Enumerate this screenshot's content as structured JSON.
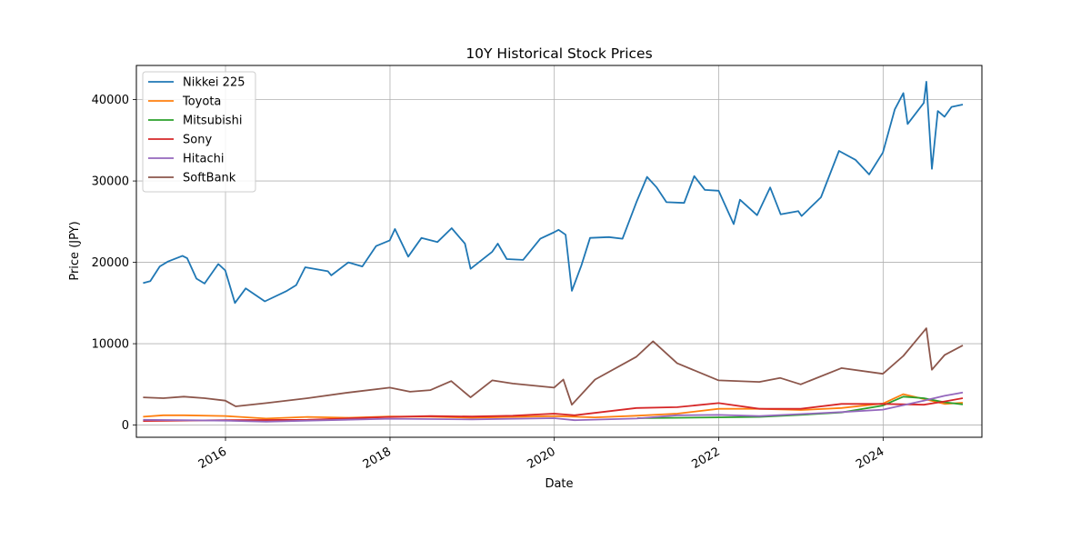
{
  "chart_data": {
    "type": "line",
    "title": "10Y Historical Stock Prices",
    "xlabel": "Date",
    "ylabel": "Price (JPY)",
    "xlim": [
      "2014-12-01",
      "2025-03-15"
    ],
    "ylim": [
      -1500,
      44200
    ],
    "x_ticks": [
      "2016",
      "2018",
      "2020",
      "2022",
      "2024"
    ],
    "y_ticks": [
      0,
      10000,
      20000,
      30000,
      40000
    ],
    "grid": true,
    "legend_position": "top-left",
    "colors": {
      "Nikkei 225": "#1f77b4",
      "Toyota": "#ff7f0e",
      "Mitsubishi": "#2ca02c",
      "Sony": "#d62728",
      "Hitachi": "#9467bd",
      "SoftBank": "#8c564b"
    },
    "series": [
      {
        "name": "Nikkei 225",
        "points": [
          [
            "2014-12-31",
            17450
          ],
          [
            "2015-02-01",
            17700
          ],
          [
            "2015-03-15",
            19500
          ],
          [
            "2015-04-20",
            20100
          ],
          [
            "2015-06-24",
            20800
          ],
          [
            "2015-07-15",
            20500
          ],
          [
            "2015-08-25",
            18000
          ],
          [
            "2015-09-30",
            17400
          ],
          [
            "2015-11-30",
            19800
          ],
          [
            "2015-12-31",
            19000
          ],
          [
            "2016-02-12",
            15000
          ],
          [
            "2016-03-31",
            16800
          ],
          [
            "2016-06-24",
            15200
          ],
          [
            "2016-09-30",
            16500
          ],
          [
            "2016-11-10",
            17200
          ],
          [
            "2016-12-20",
            19400
          ],
          [
            "2017-03-31",
            18900
          ],
          [
            "2017-04-15",
            18400
          ],
          [
            "2017-06-30",
            20000
          ],
          [
            "2017-08-31",
            19500
          ],
          [
            "2017-10-31",
            22000
          ],
          [
            "2017-12-31",
            22700
          ],
          [
            "2018-01-23",
            24100
          ],
          [
            "2018-03-23",
            20700
          ],
          [
            "2018-05-21",
            23000
          ],
          [
            "2018-07-31",
            22500
          ],
          [
            "2018-10-02",
            24200
          ],
          [
            "2018-11-30",
            22300
          ],
          [
            "2018-12-25",
            19200
          ],
          [
            "2019-03-31",
            21300
          ],
          [
            "2019-04-25",
            22300
          ],
          [
            "2019-06-04",
            20400
          ],
          [
            "2019-08-15",
            20300
          ],
          [
            "2019-10-31",
            22900
          ],
          [
            "2019-12-31",
            23700
          ],
          [
            "2020-01-20",
            24000
          ],
          [
            "2020-02-20",
            23400
          ],
          [
            "2020-03-19",
            16500
          ],
          [
            "2020-04-30",
            19600
          ],
          [
            "2020-06-08",
            23000
          ],
          [
            "2020-08-31",
            23100
          ],
          [
            "2020-10-30",
            22900
          ],
          [
            "2020-12-31",
            27400
          ],
          [
            "2021-02-16",
            30500
          ],
          [
            "2021-03-31",
            29200
          ],
          [
            "2021-05-13",
            27400
          ],
          [
            "2021-07-31",
            27300
          ],
          [
            "2021-09-14",
            30600
          ],
          [
            "2021-10-31",
            28900
          ],
          [
            "2021-12-31",
            28800
          ],
          [
            "2022-03-08",
            24700
          ],
          [
            "2022-04-05",
            27700
          ],
          [
            "2022-06-20",
            25800
          ],
          [
            "2022-08-17",
            29200
          ],
          [
            "2022-10-03",
            25900
          ],
          [
            "2022-12-20",
            26300
          ],
          [
            "2023-01-04",
            25700
          ],
          [
            "2023-03-31",
            28000
          ],
          [
            "2023-06-19",
            33700
          ],
          [
            "2023-08-31",
            32600
          ],
          [
            "2023-10-31",
            30800
          ],
          [
            "2023-12-31",
            33500
          ],
          [
            "2024-02-22",
            38800
          ],
          [
            "2024-03-31",
            40800
          ],
          [
            "2024-04-19",
            37000
          ],
          [
            "2024-06-30",
            39600
          ],
          [
            "2024-07-11",
            42200
          ],
          [
            "2024-08-05",
            31500
          ],
          [
            "2024-08-31",
            38600
          ],
          [
            "2024-09-30",
            37900
          ],
          [
            "2024-10-31",
            39100
          ],
          [
            "2024-12-20",
            39400
          ]
        ]
      },
      {
        "name": "Toyota",
        "points": [
          [
            "2014-12-31",
            1030
          ],
          [
            "2015-03-31",
            1200
          ],
          [
            "2015-06-30",
            1200
          ],
          [
            "2015-12-31",
            1120
          ],
          [
            "2016-06-30",
            800
          ],
          [
            "2016-12-31",
            1000
          ],
          [
            "2017-06-30",
            900
          ],
          [
            "2017-12-31",
            1050
          ],
          [
            "2018-06-30",
            1020
          ],
          [
            "2018-12-31",
            900
          ],
          [
            "2019-06-30",
            1000
          ],
          [
            "2019-12-31",
            1100
          ],
          [
            "2020-06-30",
            950
          ],
          [
            "2020-12-31",
            1150
          ],
          [
            "2021-06-30",
            1400
          ],
          [
            "2021-12-31",
            2000
          ],
          [
            "2022-06-30",
            2000
          ],
          [
            "2022-12-31",
            1850
          ],
          [
            "2023-06-30",
            2100
          ],
          [
            "2023-12-31",
            2650
          ],
          [
            "2024-03-31",
            3800
          ],
          [
            "2024-06-30",
            3200
          ],
          [
            "2024-09-30",
            2600
          ],
          [
            "2024-12-20",
            2750
          ]
        ]
      },
      {
        "name": "Mitsubishi",
        "points": [
          [
            "2021-01-04",
            850
          ],
          [
            "2021-12-31",
            950
          ],
          [
            "2022-06-30",
            1000
          ],
          [
            "2022-12-31",
            1250
          ],
          [
            "2023-06-30",
            1550
          ],
          [
            "2023-12-31",
            2400
          ],
          [
            "2024-03-31",
            3500
          ],
          [
            "2024-06-30",
            3300
          ],
          [
            "2024-09-30",
            2800
          ],
          [
            "2024-12-20",
            2550
          ]
        ]
      },
      {
        "name": "Sony",
        "points": [
          [
            "2014-12-31",
            500
          ],
          [
            "2015-12-31",
            600
          ],
          [
            "2016-12-31",
            650
          ],
          [
            "2017-12-31",
            1000
          ],
          [
            "2018-06-30",
            1100
          ],
          [
            "2018-12-31",
            1050
          ],
          [
            "2019-06-30",
            1150
          ],
          [
            "2019-12-31",
            1400
          ],
          [
            "2020-03-31",
            1200
          ],
          [
            "2020-12-31",
            2100
          ],
          [
            "2021-06-30",
            2200
          ],
          [
            "2021-12-31",
            2700
          ],
          [
            "2022-06-30",
            2000
          ],
          [
            "2022-12-31",
            2000
          ],
          [
            "2023-06-30",
            2600
          ],
          [
            "2023-12-31",
            2600
          ],
          [
            "2024-06-30",
            2500
          ],
          [
            "2024-09-30",
            2900
          ],
          [
            "2024-12-20",
            3300
          ]
        ]
      },
      {
        "name": "Hitachi",
        "points": [
          [
            "2014-12-31",
            650
          ],
          [
            "2015-12-31",
            550
          ],
          [
            "2016-06-30",
            420
          ],
          [
            "2016-12-31",
            550
          ],
          [
            "2017-12-31",
            780
          ],
          [
            "2018-12-31",
            700
          ],
          [
            "2019-12-31",
            850
          ],
          [
            "2020-03-31",
            600
          ],
          [
            "2020-12-31",
            800
          ],
          [
            "2021-06-30",
            1200
          ],
          [
            "2021-12-31",
            1250
          ],
          [
            "2022-06-30",
            1100
          ],
          [
            "2022-12-31",
            1350
          ],
          [
            "2023-06-30",
            1600
          ],
          [
            "2023-12-31",
            1900
          ],
          [
            "2024-06-30",
            3000
          ],
          [
            "2024-09-30",
            3600
          ],
          [
            "2024-12-20",
            4000
          ]
        ]
      },
      {
        "name": "SoftBank",
        "points": [
          [
            "2014-12-31",
            3400
          ],
          [
            "2015-03-31",
            3300
          ],
          [
            "2015-06-30",
            3500
          ],
          [
            "2015-09-30",
            3300
          ],
          [
            "2015-12-31",
            3000
          ],
          [
            "2016-02-15",
            2300
          ],
          [
            "2016-06-30",
            2700
          ],
          [
            "2016-12-31",
            3300
          ],
          [
            "2017-06-30",
            4000
          ],
          [
            "2017-12-31",
            4600
          ],
          [
            "2018-03-31",
            4100
          ],
          [
            "2018-06-30",
            4300
          ],
          [
            "2018-09-30",
            5400
          ],
          [
            "2018-12-25",
            3400
          ],
          [
            "2019-03-31",
            5500
          ],
          [
            "2019-06-30",
            5100
          ],
          [
            "2019-12-31",
            4600
          ],
          [
            "2020-02-10",
            5600
          ],
          [
            "2020-03-19",
            2500
          ],
          [
            "2020-06-30",
            5600
          ],
          [
            "2020-12-31",
            8400
          ],
          [
            "2021-03-15",
            10300
          ],
          [
            "2021-06-30",
            7600
          ],
          [
            "2021-12-31",
            5500
          ],
          [
            "2022-06-30",
            5300
          ],
          [
            "2022-09-30",
            5800
          ],
          [
            "2022-12-31",
            5000
          ],
          [
            "2023-06-30",
            7000
          ],
          [
            "2023-12-31",
            6300
          ],
          [
            "2024-03-31",
            8500
          ],
          [
            "2024-07-11",
            11900
          ],
          [
            "2024-08-05",
            6800
          ],
          [
            "2024-09-30",
            8600
          ],
          [
            "2024-12-20",
            9800
          ]
        ]
      }
    ]
  }
}
